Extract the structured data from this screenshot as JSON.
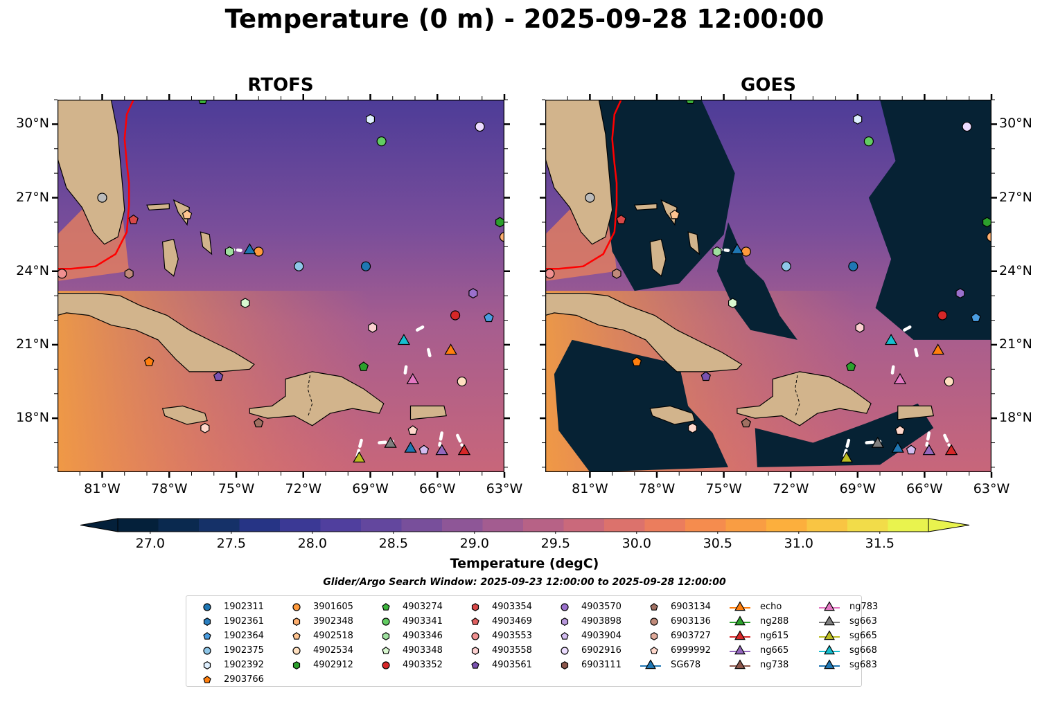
{
  "title": "Temperature (0 m) - 2025-09-28 12:00:00",
  "panels": [
    {
      "title": "RTOFS"
    },
    {
      "title": "GOES"
    }
  ],
  "map": {
    "lon_range": [
      -83,
      -63
    ],
    "lat_range": [
      15.8,
      31
    ],
    "lon_ticks": [
      "81°W",
      "78°W",
      "75°W",
      "72°W",
      "69°W",
      "66°W",
      "63°W"
    ],
    "lat_ticks": [
      "30°N",
      "27°N",
      "24°N",
      "21°N",
      "18°N"
    ],
    "colors": {
      "land": "#d2b48c",
      "gulf_stream": "#ff0000",
      "track": "#ffffff",
      "goes_cloud": "#062234"
    }
  },
  "colorbar": {
    "label": "Temperature (degC)",
    "range": [
      26.8,
      31.8
    ],
    "ticks": [
      "27.0",
      "27.5",
      "28.0",
      "28.5",
      "29.0",
      "29.5",
      "30.0",
      "30.5",
      "31.0",
      "31.5"
    ],
    "colormap": "thermal"
  },
  "search_window": "Glider/Argo Search Window: 2025-09-23 12:00:00 to 2025-09-28 12:00:00",
  "legend": [
    [
      {
        "label": "1902311",
        "marker": "circle",
        "color": "#1f77b4"
      },
      {
        "label": "1902361",
        "marker": "hexagon",
        "color": "#2a7fc0"
      },
      {
        "label": "1902364",
        "marker": "pentagon",
        "color": "#4a9de0"
      },
      {
        "label": "1902375",
        "marker": "circle",
        "color": "#8ec6e8"
      },
      {
        "label": "1902392",
        "marker": "hexagon",
        "color": "#dff0ff"
      },
      {
        "label": "2903766",
        "marker": "pentagon",
        "color": "#ff7f0e"
      }
    ],
    [
      {
        "label": "3901605",
        "marker": "circle",
        "color": "#ff9a3c"
      },
      {
        "label": "3902348",
        "marker": "hexagon",
        "color": "#ffb070"
      },
      {
        "label": "4902518",
        "marker": "pentagon",
        "color": "#ffc490"
      },
      {
        "label": "4902534",
        "marker": "circle",
        "color": "#ffe0c0"
      },
      {
        "label": "4902912",
        "marker": "hexagon",
        "color": "#2ca02c"
      }
    ],
    [
      {
        "label": "4903274",
        "marker": "pentagon",
        "color": "#3cb43c"
      },
      {
        "label": "4903341",
        "marker": "circle",
        "color": "#62cc62"
      },
      {
        "label": "4903346",
        "marker": "hexagon",
        "color": "#9fe09f"
      },
      {
        "label": "4903348",
        "marker": "pentagon",
        "color": "#d8f8d0"
      },
      {
        "label": "4903352",
        "marker": "circle",
        "color": "#d62728"
      }
    ],
    [
      {
        "label": "4903354",
        "marker": "hexagon",
        "color": "#d84848"
      },
      {
        "label": "4903469",
        "marker": "pentagon",
        "color": "#e06060"
      },
      {
        "label": "4903553",
        "marker": "circle",
        "color": "#f09090"
      },
      {
        "label": "4903558",
        "marker": "hexagon",
        "color": "#fcd0d0"
      },
      {
        "label": "4903561",
        "marker": "pentagon",
        "color": "#7a52b0"
      }
    ],
    [
      {
        "label": "4903570",
        "marker": "circle",
        "color": "#9a70cc"
      },
      {
        "label": "4903898",
        "marker": "hexagon",
        "color": "#b898dc"
      },
      {
        "label": "4903904",
        "marker": "pentagon",
        "color": "#d2bcf0"
      },
      {
        "label": "6902916",
        "marker": "circle",
        "color": "#ecdcff"
      },
      {
        "label": "6903111",
        "marker": "hexagon",
        "color": "#8c564b"
      }
    ],
    [
      {
        "label": "6903134",
        "marker": "pentagon",
        "color": "#a07062"
      },
      {
        "label": "6903136",
        "marker": "circle",
        "color": "#c08a7a"
      },
      {
        "label": "6903727",
        "marker": "hexagon",
        "color": "#e0aa9a"
      },
      {
        "label": "6999992",
        "marker": "pentagon",
        "color": "#ffd8cc"
      },
      {
        "label": "SG678",
        "marker": "triangle-line",
        "color": "#1f77b4"
      }
    ],
    [
      {
        "label": "echo",
        "marker": "triangle-line",
        "color": "#ff7f0e"
      },
      {
        "label": "ng288",
        "marker": "triangle-line",
        "color": "#2ca02c"
      },
      {
        "label": "ng615",
        "marker": "triangle-line",
        "color": "#d62728"
      },
      {
        "label": "ng665",
        "marker": "triangle-line",
        "color": "#9467bd"
      },
      {
        "label": "ng738",
        "marker": "triangle-line",
        "color": "#8c564b"
      }
    ],
    [
      {
        "label": "ng783",
        "marker": "triangle-line",
        "color": "#e377c2"
      },
      {
        "label": "sg663",
        "marker": "triangle-line",
        "color": "#7f7f7f"
      },
      {
        "label": "sg665",
        "marker": "triangle-line",
        "color": "#bcbd22"
      },
      {
        "label": "sg668",
        "marker": "triangle-line",
        "color": "#17becf"
      },
      {
        "label": "sg683",
        "marker": "triangle-line",
        "color": "#1f77b4"
      }
    ]
  ]
}
